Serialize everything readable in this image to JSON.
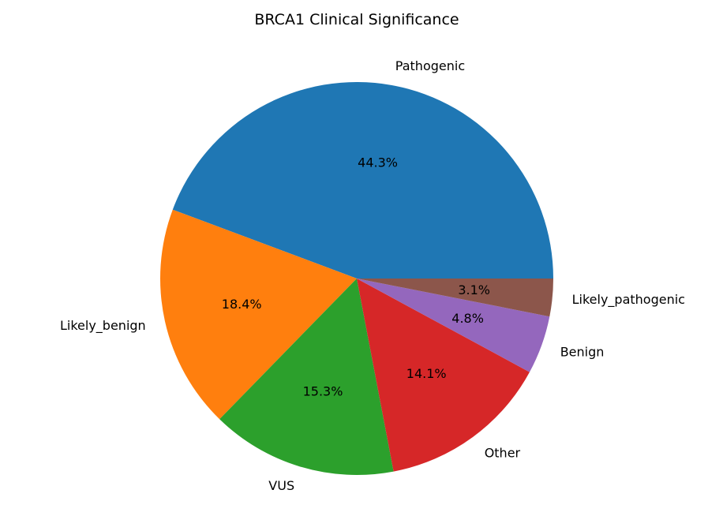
{
  "chart_data": {
    "type": "pie",
    "title": "BRCA1 Clinical Significance",
    "start_angle_deg": 0,
    "direction": "counterclockwise",
    "slices": [
      {
        "label": "Pathogenic",
        "value": 44.3,
        "pct_text": "44.3%",
        "color": "#1f77b4"
      },
      {
        "label": "Likely_benign",
        "value": 18.4,
        "pct_text": "18.4%",
        "color": "#ff7f0e"
      },
      {
        "label": "VUS",
        "value": 15.3,
        "pct_text": "15.3%",
        "color": "#2ca02c"
      },
      {
        "label": "Other",
        "value": 14.1,
        "pct_text": "14.1%",
        "color": "#d62728"
      },
      {
        "label": "Benign",
        "value": 4.8,
        "pct_text": "4.8%",
        "color": "#9467bd"
      },
      {
        "label": "Likely_pathogenic",
        "value": 3.1,
        "pct_text": "3.1%",
        "color": "#8c564b"
      }
    ]
  }
}
